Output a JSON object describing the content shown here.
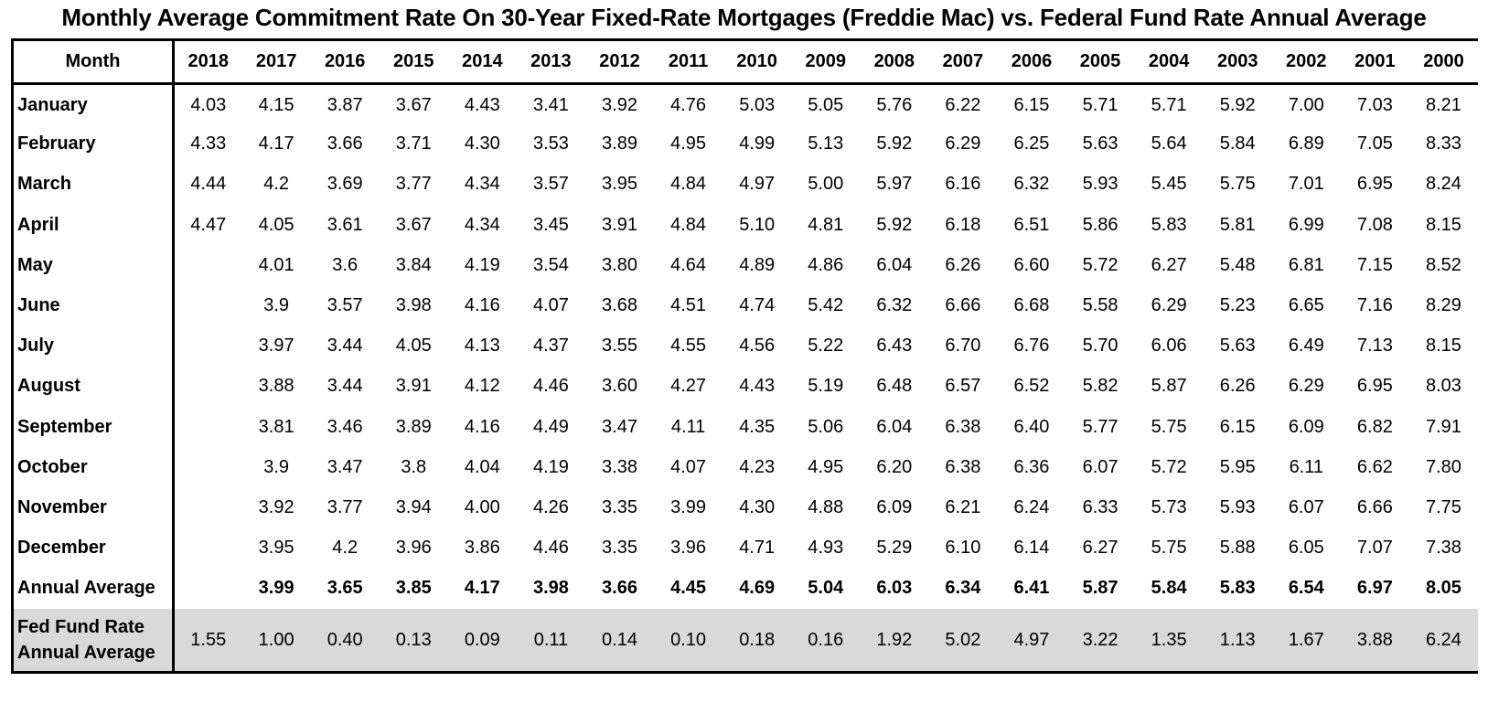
{
  "title": "Monthly Average Commitment Rate On 30-Year Fixed-Rate Mortgages (Freddie Mac) vs. Federal Fund Rate Annual Average",
  "chart_data": {
    "type": "table",
    "title": "Monthly Average Commitment Rate On 30-Year Fixed-Rate Mortgages (Freddie Mac) vs. Federal Fund Rate Annual Average",
    "header_label": "Month",
    "columns": [
      "2018",
      "2017",
      "2016",
      "2015",
      "2014",
      "2013",
      "2012",
      "2011",
      "2010",
      "2009",
      "2008",
      "2007",
      "2006",
      "2005",
      "2004",
      "2003",
      "2002",
      "2001",
      "2000"
    ],
    "rows": [
      {
        "label": "January",
        "values": [
          "4.03",
          "4.15",
          "3.87",
          "3.67",
          "4.43",
          "3.41",
          "3.92",
          "4.76",
          "5.03",
          "5.05",
          "5.76",
          "6.22",
          "6.15",
          "5.71",
          "5.71",
          "5.92",
          "7.00",
          "7.03",
          "8.21"
        ]
      },
      {
        "label": "February",
        "values": [
          "4.33",
          "4.17",
          "3.66",
          "3.71",
          "4.30",
          "3.53",
          "3.89",
          "4.95",
          "4.99",
          "5.13",
          "5.92",
          "6.29",
          "6.25",
          "5.63",
          "5.64",
          "5.84",
          "6.89",
          "7.05",
          "8.33"
        ]
      },
      {
        "label": "March",
        "values": [
          "4.44",
          "4.2",
          "3.69",
          "3.77",
          "4.34",
          "3.57",
          "3.95",
          "4.84",
          "4.97",
          "5.00",
          "5.97",
          "6.16",
          "6.32",
          "5.93",
          "5.45",
          "5.75",
          "7.01",
          "6.95",
          "8.24"
        ]
      },
      {
        "label": "April",
        "values": [
          "4.47",
          "4.05",
          "3.61",
          "3.67",
          "4.34",
          "3.45",
          "3.91",
          "4.84",
          "5.10",
          "4.81",
          "5.92",
          "6.18",
          "6.51",
          "5.86",
          "5.83",
          "5.81",
          "6.99",
          "7.08",
          "8.15"
        ]
      },
      {
        "label": "May",
        "values": [
          "",
          "4.01",
          "3.6",
          "3.84",
          "4.19",
          "3.54",
          "3.80",
          "4.64",
          "4.89",
          "4.86",
          "6.04",
          "6.26",
          "6.60",
          "5.72",
          "6.27",
          "5.48",
          "6.81",
          "7.15",
          "8.52"
        ]
      },
      {
        "label": "June",
        "values": [
          "",
          "3.9",
          "3.57",
          "3.98",
          "4.16",
          "4.07",
          "3.68",
          "4.51",
          "4.74",
          "5.42",
          "6.32",
          "6.66",
          "6.68",
          "5.58",
          "6.29",
          "5.23",
          "6.65",
          "7.16",
          "8.29"
        ]
      },
      {
        "label": "July",
        "values": [
          "",
          "3.97",
          "3.44",
          "4.05",
          "4.13",
          "4.37",
          "3.55",
          "4.55",
          "4.56",
          "5.22",
          "6.43",
          "6.70",
          "6.76",
          "5.70",
          "6.06",
          "5.63",
          "6.49",
          "7.13",
          "8.15"
        ]
      },
      {
        "label": "August",
        "values": [
          "",
          "3.88",
          "3.44",
          "3.91",
          "4.12",
          "4.46",
          "3.60",
          "4.27",
          "4.43",
          "5.19",
          "6.48",
          "6.57",
          "6.52",
          "5.82",
          "5.87",
          "6.26",
          "6.29",
          "6.95",
          "8.03"
        ]
      },
      {
        "label": "September",
        "values": [
          "",
          "3.81",
          "3.46",
          "3.89",
          "4.16",
          "4.49",
          "3.47",
          "4.11",
          "4.35",
          "5.06",
          "6.04",
          "6.38",
          "6.40",
          "5.77",
          "5.75",
          "6.15",
          "6.09",
          "6.82",
          "7.91"
        ]
      },
      {
        "label": "October",
        "values": [
          "",
          "3.9",
          "3.47",
          "3.8",
          "4.04",
          "4.19",
          "3.38",
          "4.07",
          "4.23",
          "4.95",
          "6.20",
          "6.38",
          "6.36",
          "6.07",
          "5.72",
          "5.95",
          "6.11",
          "6.62",
          "7.80"
        ]
      },
      {
        "label": "November",
        "values": [
          "",
          "3.92",
          "3.77",
          "3.94",
          "4.00",
          "4.26",
          "3.35",
          "3.99",
          "4.30",
          "4.88",
          "6.09",
          "6.21",
          "6.24",
          "6.33",
          "5.73",
          "5.93",
          "6.07",
          "6.66",
          "7.75"
        ]
      },
      {
        "label": "December",
        "values": [
          "",
          "3.95",
          "4.2",
          "3.96",
          "3.86",
          "4.46",
          "3.35",
          "3.96",
          "4.71",
          "4.93",
          "5.29",
          "6.10",
          "6.14",
          "6.27",
          "5.75",
          "5.88",
          "6.05",
          "7.07",
          "7.38"
        ]
      },
      {
        "label": "Annual Average",
        "kind": "average",
        "values": [
          "",
          "3.99",
          "3.65",
          "3.85",
          "4.17",
          "3.98",
          "3.66",
          "4.45",
          "4.69",
          "5.04",
          "6.03",
          "6.34",
          "6.41",
          "5.87",
          "5.84",
          "5.83",
          "6.54",
          "6.97",
          "8.05"
        ]
      },
      {
        "label": "Fed Fund Rate Annual Average",
        "kind": "fed",
        "values": [
          "1.55",
          "1.00",
          "0.40",
          "0.13",
          "0.09",
          "0.11",
          "0.14",
          "0.10",
          "0.18",
          "0.16",
          "1.92",
          "5.02",
          "4.97",
          "3.22",
          "1.35",
          "1.13",
          "1.67",
          "3.88",
          "6.24"
        ]
      }
    ],
    "colors": {
      "fed_row_background": "#d9d9d9"
    }
  }
}
